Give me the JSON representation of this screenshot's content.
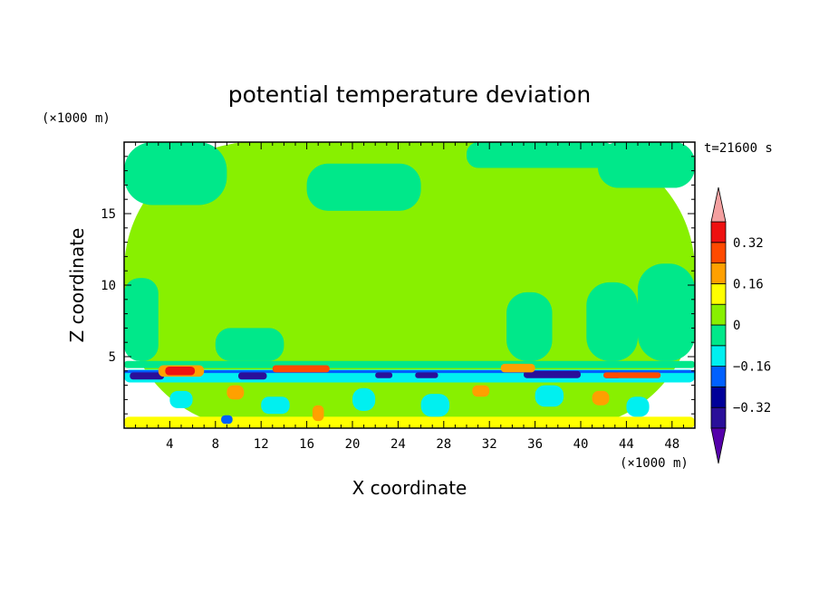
{
  "chart_data": {
    "type": "heatmap",
    "title": "potential temperature deviation",
    "xlabel": "X coordinate",
    "ylabel": "Z coordinate",
    "x_unit": "(×1000 m)",
    "y_unit": "(×1000 m)",
    "time_label": "t=21600 s",
    "xlim": [
      0,
      50
    ],
    "ylim": [
      0,
      20
    ],
    "x_ticks": [
      4,
      8,
      12,
      16,
      20,
      24,
      28,
      32,
      36,
      40,
      44,
      48
    ],
    "y_ticks": [
      5,
      10,
      15
    ],
    "colorbar": {
      "levels": [
        -0.4,
        -0.32,
        -0.24,
        -0.16,
        -0.08,
        0,
        0.08,
        0.16,
        0.24,
        0.32,
        0.4
      ],
      "labels": [
        "0.32",
        "0.16",
        "0",
        "−0.16",
        "−0.32"
      ],
      "label_values": [
        0.32,
        0.16,
        0,
        -0.16,
        -0.32
      ],
      "colors": [
        "#5500aa",
        "#2a0f99",
        "#000099",
        "#0060ff",
        "#00f0f0",
        "#00e88a",
        "#88f000",
        "#ffff00",
        "#ffa000",
        "#ff4a00",
        "#ee1111",
        "#f4a0a0"
      ],
      "extend": "both"
    },
    "regions": [
      {
        "value": 0.04,
        "x0": 0,
        "x1": 50,
        "z0": 0,
        "z1": 20
      },
      {
        "value": -0.04,
        "x0": 0,
        "x1": 9,
        "z0": 15.6,
        "z1": 20
      },
      {
        "value": -0.04,
        "x0": 16,
        "x1": 26,
        "z0": 15.2,
        "z1": 18.5
      },
      {
        "value": -0.04,
        "x0": 30,
        "x1": 43,
        "z0": 18.2,
        "z1": 20
      },
      {
        "value": -0.04,
        "x0": 41.5,
        "x1": 50,
        "z0": 16.8,
        "z1": 20
      },
      {
        "value": -0.04,
        "x0": 0,
        "x1": 3,
        "z0": 4.7,
        "z1": 10.5
      },
      {
        "value": -0.04,
        "x0": 8,
        "x1": 14,
        "z0": 4.7,
        "z1": 7
      },
      {
        "value": -0.04,
        "x0": 33.5,
        "x1": 37.5,
        "z0": 4.7,
        "z1": 9.5
      },
      {
        "value": -0.04,
        "x0": 40.5,
        "x1": 45,
        "z0": 4.7,
        "z1": 10.2
      },
      {
        "value": -0.04,
        "x0": 45,
        "x1": 50,
        "z0": 4.7,
        "z1": 11.5
      },
      {
        "value": -0.04,
        "x0": 0,
        "x1": 50,
        "z0": 4.2,
        "z1": 4.7
      },
      {
        "value": -0.12,
        "x0": 0,
        "x1": 50,
        "z0": 3.2,
        "z1": 4.1
      },
      {
        "value": -0.2,
        "x0": 0,
        "x1": 50,
        "z0": 3.85,
        "z1": 4.05
      },
      {
        "value": -0.36,
        "x0": 0.5,
        "x1": 3.5,
        "z0": 3.4,
        "z1": 3.9
      },
      {
        "value": -0.36,
        "x0": 10,
        "x1": 12.5,
        "z0": 3.4,
        "z1": 3.9
      },
      {
        "value": -0.36,
        "x0": 22,
        "x1": 23.5,
        "z0": 3.5,
        "z1": 3.9
      },
      {
        "value": -0.36,
        "x0": 25.5,
        "x1": 27.5,
        "z0": 3.5,
        "z1": 3.9
      },
      {
        "value": -0.36,
        "x0": 35,
        "x1": 40,
        "z0": 3.5,
        "z1": 4.0
      },
      {
        "value": -0.36,
        "x0": 42,
        "x1": 43.5,
        "z0": 3.5,
        "z1": 3.9
      },
      {
        "value": 0.2,
        "x0": 3,
        "x1": 7,
        "z0": 3.6,
        "z1": 4.4
      },
      {
        "value": 0.36,
        "x0": 3.6,
        "x1": 6.2,
        "z0": 3.7,
        "z1": 4.3
      },
      {
        "value": 0.28,
        "x0": 13,
        "x1": 18,
        "z0": 3.9,
        "z1": 4.4
      },
      {
        "value": 0.28,
        "x0": 42,
        "x1": 47,
        "z0": 3.5,
        "z1": 3.9
      },
      {
        "value": 0.2,
        "x0": 33,
        "x1": 36,
        "z0": 3.9,
        "z1": 4.5
      },
      {
        "value": 0.12,
        "x0": 0,
        "x1": 50,
        "z0": 0,
        "z1": 0.8
      },
      {
        "value": -0.12,
        "x0": 4,
        "x1": 6,
        "z0": 1.4,
        "z1": 2.6
      },
      {
        "value": -0.12,
        "x0": 12,
        "x1": 14.5,
        "z0": 1.0,
        "z1": 2.2
      },
      {
        "value": -0.12,
        "x0": 20,
        "x1": 22,
        "z0": 1.2,
        "z1": 2.8
      },
      {
        "value": -0.12,
        "x0": 26,
        "x1": 28.5,
        "z0": 0.8,
        "z1": 2.4
      },
      {
        "value": -0.12,
        "x0": 36,
        "x1": 38.5,
        "z0": 1.5,
        "z1": 3.0
      },
      {
        "value": -0.12,
        "x0": 44,
        "x1": 46,
        "z0": 0.8,
        "z1": 2.2
      },
      {
        "value": 0.2,
        "x0": 9,
        "x1": 10.5,
        "z0": 2.0,
        "z1": 3.0
      },
      {
        "value": 0.2,
        "x0": 16.5,
        "x1": 17.5,
        "z0": 0.5,
        "z1": 1.6
      },
      {
        "value": 0.2,
        "x0": 30.5,
        "x1": 32,
        "z0": 2.2,
        "z1": 3.0
      },
      {
        "value": 0.2,
        "x0": 41,
        "x1": 42.5,
        "z0": 1.6,
        "z1": 2.6
      },
      {
        "value": -0.2,
        "x0": 8.5,
        "x1": 9.5,
        "z0": 0.3,
        "z1": 0.9
      }
    ]
  }
}
